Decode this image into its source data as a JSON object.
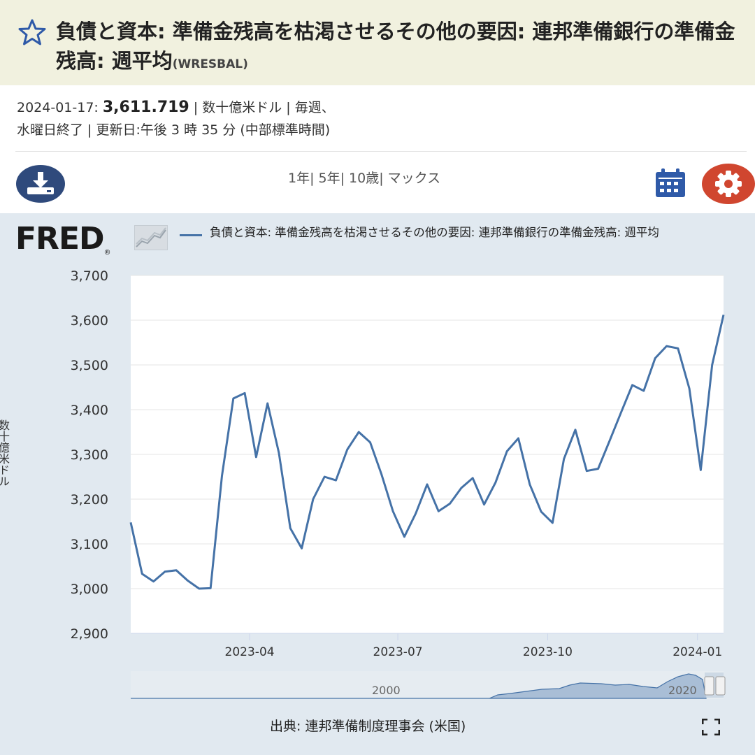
{
  "header": {
    "title": "負債と資本: 準備金残高を枯渇させるその他の要因: 連邦準備銀行の準備金残高: 週平均",
    "series_code": "(WRESBAL)"
  },
  "meta": {
    "date": "2024-01-17:",
    "value": "3,611.719",
    "line1_rest": "| 数十億米ドル | 毎週、",
    "line2": "水曜日終了 | 更新日:午後 3 時 35 分 (中部標準時間)"
  },
  "toolbar": {
    "ranges": "1年| 5年| 10歳| マックス"
  },
  "chart_header": {
    "logo": "FRED",
    "logo_mark": "®",
    "legend": "負債と資本: 準備金残高を枯渇させるその他の要因: 連邦準備銀行の準備金残高: 週平均",
    "ylabel_partial": "数十億米ドル"
  },
  "navigator": {
    "label_left": "2000",
    "label_right": "2020"
  },
  "footer": {
    "source": "出典: 連邦準備制度理事会 (米国)"
  },
  "colors": {
    "series": "#4572a7",
    "title_bg": "#f1f1df",
    "chart_bg": "#e1e9f0",
    "download_button": "#2f4a7c",
    "settings_button": "#d0462f"
  },
  "icons": [
    "star-icon",
    "download-icon",
    "calendar-icon",
    "gear-icon",
    "fullscreen-icon"
  ],
  "chart_data": {
    "type": "line",
    "title": "",
    "xlabel": "",
    "ylabel": "",
    "ylim": [
      2900,
      3700
    ],
    "yticks": [
      2900,
      3000,
      3100,
      3200,
      3300,
      3400,
      3500,
      3600,
      3700
    ],
    "xticks": [
      "2023-04",
      "2023-07",
      "2023-10",
      "2024-01"
    ],
    "grid": true,
    "legend_position": "top",
    "series": [
      {
        "name": "負債と資本: 準備金残高を枯渇させるその他の要因: 連邦準備銀行の準備金残高: 週平均",
        "x": [
          "2023-01-18",
          "2023-01-25",
          "2023-02-01",
          "2023-02-08",
          "2023-02-15",
          "2023-02-22",
          "2023-03-01",
          "2023-03-08",
          "2023-03-15",
          "2023-03-22",
          "2023-03-29",
          "2023-04-05",
          "2023-04-12",
          "2023-04-19",
          "2023-04-26",
          "2023-05-03",
          "2023-05-10",
          "2023-05-17",
          "2023-05-24",
          "2023-05-31",
          "2023-06-07",
          "2023-06-14",
          "2023-06-21",
          "2023-06-28",
          "2023-07-05",
          "2023-07-12",
          "2023-07-19",
          "2023-07-26",
          "2023-08-02",
          "2023-08-09",
          "2023-08-16",
          "2023-08-23",
          "2023-08-30",
          "2023-09-06",
          "2023-09-13",
          "2023-09-20",
          "2023-09-27",
          "2023-10-04",
          "2023-10-11",
          "2023-10-18",
          "2023-10-25",
          "2023-11-01",
          "2023-11-08",
          "2023-11-15",
          "2023-11-22",
          "2023-11-29",
          "2023-12-06",
          "2023-12-13",
          "2023-12-20",
          "2023-12-27",
          "2024-01-03",
          "2024-01-10",
          "2024-01-17"
        ],
        "values": [
          3148,
          3033,
          3016,
          3038,
          3041,
          3018,
          3000,
          3001,
          3252,
          3425,
          3437,
          3294,
          3414,
          3303,
          3135,
          3090,
          3200,
          3250,
          3242,
          3311,
          3350,
          3327,
          3255,
          3173,
          3116,
          3168,
          3233,
          3173,
          3190,
          3225,
          3247,
          3188,
          3237,
          3307,
          3336,
          3233,
          3172,
          3147,
          3290,
          3355,
          3263,
          3268,
          3330,
          3393,
          3455,
          3442,
          3515,
          3542,
          3537,
          3447,
          3265,
          3500,
          3612
        ]
      }
    ]
  }
}
